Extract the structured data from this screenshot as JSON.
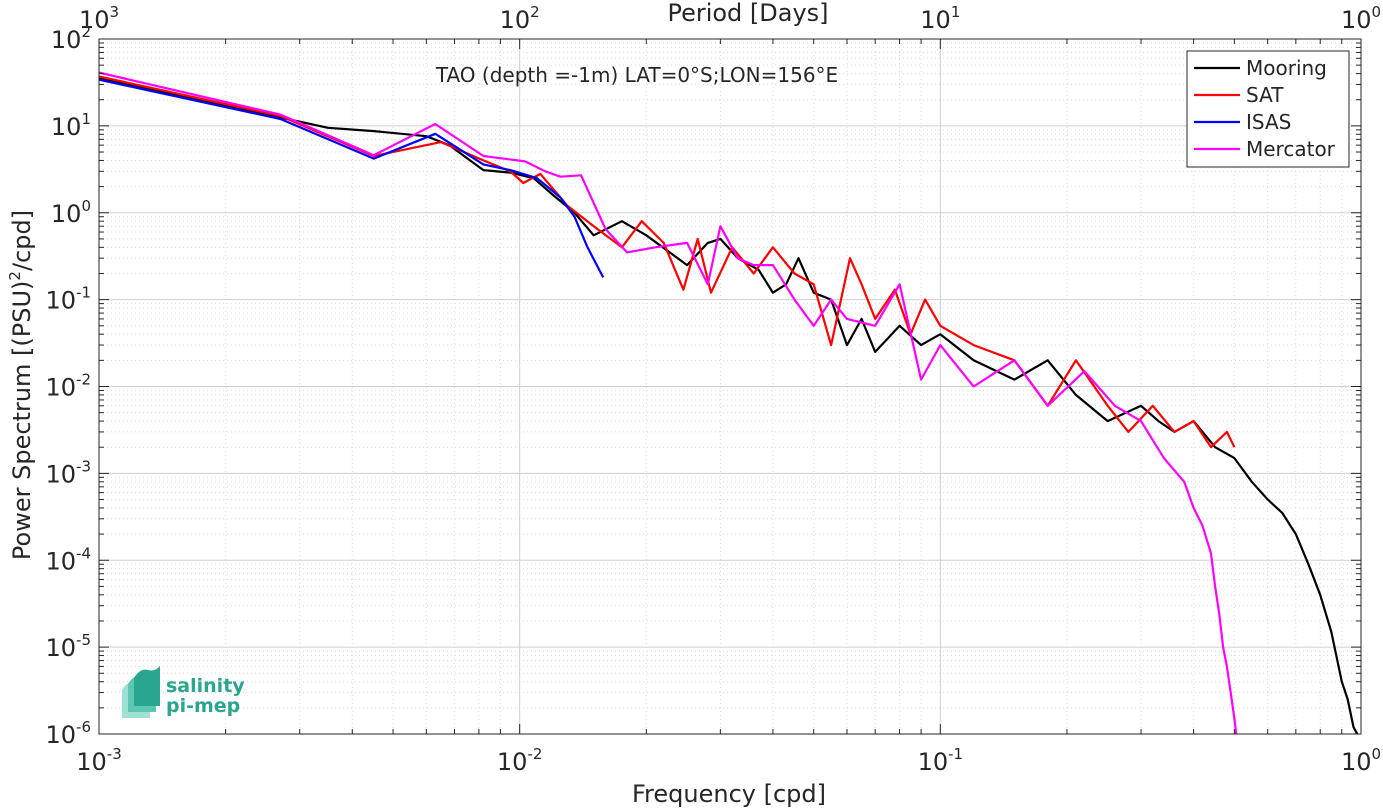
{
  "chart_data": {
    "type": "line",
    "xlabel": "Frequency [cpd]",
    "ylabel": "Power Spectrum [(PSU)^2/cpd]",
    "top_xlabel": "Period [Days]",
    "annotation": "TAO (depth =-1m) LAT=0°S;LON=156°E",
    "x_scale": "log",
    "y_scale": "log",
    "xlim": [
      0.001,
      1
    ],
    "ylim": [
      1e-06,
      100
    ],
    "grid": true,
    "legend_position": "top-right",
    "x_ticks": [
      {
        "value": 0.001,
        "base": "10",
        "exp": "-3"
      },
      {
        "value": 0.01,
        "base": "10",
        "exp": "-2"
      },
      {
        "value": 0.1,
        "base": "10",
        "exp": "-1"
      },
      {
        "value": 1,
        "base": "10",
        "exp": "0"
      }
    ],
    "top_ticks": [
      {
        "value": 0.001,
        "base": "10",
        "exp": "3"
      },
      {
        "value": 0.01,
        "base": "10",
        "exp": "2"
      },
      {
        "value": 0.1,
        "base": "10",
        "exp": "1"
      },
      {
        "value": 1,
        "base": "10",
        "exp": "0"
      }
    ],
    "y_ticks": [
      {
        "value": 100,
        "base": "10",
        "exp": "2"
      },
      {
        "value": 10,
        "base": "10",
        "exp": "1"
      },
      {
        "value": 1,
        "base": "10",
        "exp": "0"
      },
      {
        "value": 0.1,
        "base": "10",
        "exp": "-1"
      },
      {
        "value": 0.01,
        "base": "10",
        "exp": "-2"
      },
      {
        "value": 0.001,
        "base": "10",
        "exp": "-3"
      },
      {
        "value": 0.0001,
        "base": "10",
        "exp": "-4"
      },
      {
        "value": 1e-05,
        "base": "10",
        "exp": "-5"
      },
      {
        "value": 1e-06,
        "base": "10",
        "exp": "-6"
      }
    ],
    "series": [
      {
        "name": "Mooring",
        "color": "#000000",
        "points": [
          [
            0.001,
            35
          ],
          [
            0.0027,
            12.5
          ],
          [
            0.0035,
            9.5
          ],
          [
            0.0045,
            8.7
          ],
          [
            0.006,
            7.6
          ],
          [
            0.0068,
            6
          ],
          [
            0.0082,
            3.1
          ],
          [
            0.0095,
            2.9
          ],
          [
            0.0108,
            2.5
          ],
          [
            0.012,
            1.6
          ],
          [
            0.0135,
            1.0
          ],
          [
            0.015,
            0.55
          ],
          [
            0.0175,
            0.8
          ],
          [
            0.02,
            0.55
          ],
          [
            0.025,
            0.25
          ],
          [
            0.028,
            0.45
          ],
          [
            0.03,
            0.5
          ],
          [
            0.033,
            0.3
          ],
          [
            0.037,
            0.22
          ],
          [
            0.04,
            0.12
          ],
          [
            0.043,
            0.15
          ],
          [
            0.046,
            0.3
          ],
          [
            0.05,
            0.12
          ],
          [
            0.055,
            0.1
          ],
          [
            0.06,
            0.03
          ],
          [
            0.065,
            0.06
          ],
          [
            0.07,
            0.025
          ],
          [
            0.08,
            0.05
          ],
          [
            0.09,
            0.03
          ],
          [
            0.1,
            0.04
          ],
          [
            0.12,
            0.02
          ],
          [
            0.15,
            0.012
          ],
          [
            0.18,
            0.02
          ],
          [
            0.21,
            0.008
          ],
          [
            0.25,
            0.004
          ],
          [
            0.3,
            0.006
          ],
          [
            0.33,
            0.004
          ],
          [
            0.36,
            0.003
          ],
          [
            0.4,
            0.004
          ],
          [
            0.45,
            0.002
          ],
          [
            0.5,
            0.0015
          ],
          [
            0.55,
            0.0008
          ],
          [
            0.6,
            0.0005
          ],
          [
            0.65,
            0.00035
          ],
          [
            0.7,
            0.0002
          ],
          [
            0.75,
            9e-05
          ],
          [
            0.8,
            4e-05
          ],
          [
            0.85,
            1.5e-05
          ],
          [
            0.9,
            4e-06
          ],
          [
            0.93,
            2.5e-06
          ],
          [
            0.96,
            1.2e-06
          ],
          [
            0.98,
            1e-06
          ]
        ]
      },
      {
        "name": "SAT",
        "color": "#ff0000",
        "points": [
          [
            0.001,
            37
          ],
          [
            0.0027,
            13
          ],
          [
            0.0045,
            4.5
          ],
          [
            0.0065,
            6.5
          ],
          [
            0.0082,
            4.0
          ],
          [
            0.0095,
            3.0
          ],
          [
            0.0102,
            2.2
          ],
          [
            0.0112,
            2.8
          ],
          [
            0.013,
            1.2
          ],
          [
            0.015,
            0.7
          ],
          [
            0.0175,
            0.4
          ],
          [
            0.0195,
            0.8
          ],
          [
            0.022,
            0.45
          ],
          [
            0.0245,
            0.13
          ],
          [
            0.0265,
            0.5
          ],
          [
            0.0285,
            0.12
          ],
          [
            0.032,
            0.4
          ],
          [
            0.036,
            0.2
          ],
          [
            0.04,
            0.4
          ],
          [
            0.045,
            0.2
          ],
          [
            0.05,
            0.15
          ],
          [
            0.055,
            0.03
          ],
          [
            0.061,
            0.3
          ],
          [
            0.065,
            0.15
          ],
          [
            0.07,
            0.06
          ],
          [
            0.078,
            0.13
          ],
          [
            0.085,
            0.04
          ],
          [
            0.092,
            0.1
          ],
          [
            0.1,
            0.05
          ],
          [
            0.12,
            0.03
          ],
          [
            0.15,
            0.02
          ],
          [
            0.18,
            0.006
          ],
          [
            0.21,
            0.02
          ],
          [
            0.25,
            0.006
          ],
          [
            0.28,
            0.003
          ],
          [
            0.32,
            0.006
          ],
          [
            0.36,
            0.003
          ],
          [
            0.4,
            0.004
          ],
          [
            0.44,
            0.002
          ],
          [
            0.48,
            0.003
          ],
          [
            0.5,
            0.002
          ]
        ]
      },
      {
        "name": "ISAS",
        "color": "#0000ff",
        "points": [
          [
            0.001,
            34
          ],
          [
            0.0027,
            12
          ],
          [
            0.0045,
            4.2
          ],
          [
            0.0063,
            8.1
          ],
          [
            0.0082,
            3.6
          ],
          [
            0.0095,
            3.1
          ],
          [
            0.011,
            2.5
          ],
          [
            0.0125,
            1.5
          ],
          [
            0.0135,
            0.9
          ],
          [
            0.0145,
            0.4
          ],
          [
            0.0158,
            0.18
          ]
        ]
      },
      {
        "name": "Mercator",
        "color": "#ff00ff",
        "points": [
          [
            0.001,
            41
          ],
          [
            0.0027,
            13.5
          ],
          [
            0.0045,
            4.6
          ],
          [
            0.0063,
            10.5
          ],
          [
            0.0082,
            4.5
          ],
          [
            0.0103,
            3.9
          ],
          [
            0.0115,
            3.0
          ],
          [
            0.0125,
            2.6
          ],
          [
            0.014,
            2.7
          ],
          [
            0.016,
            0.65
          ],
          [
            0.018,
            0.35
          ],
          [
            0.021,
            0.4
          ],
          [
            0.025,
            0.45
          ],
          [
            0.028,
            0.15
          ],
          [
            0.03,
            0.7
          ],
          [
            0.033,
            0.3
          ],
          [
            0.036,
            0.25
          ],
          [
            0.04,
            0.25
          ],
          [
            0.045,
            0.1
          ],
          [
            0.05,
            0.05
          ],
          [
            0.055,
            0.1
          ],
          [
            0.06,
            0.06
          ],
          [
            0.07,
            0.05
          ],
          [
            0.08,
            0.15
          ],
          [
            0.09,
            0.012
          ],
          [
            0.1,
            0.03
          ],
          [
            0.12,
            0.01
          ],
          [
            0.15,
            0.02
          ],
          [
            0.18,
            0.006
          ],
          [
            0.22,
            0.015
          ],
          [
            0.26,
            0.006
          ],
          [
            0.3,
            0.004
          ],
          [
            0.34,
            0.0015
          ],
          [
            0.38,
            0.0008
          ],
          [
            0.4,
            0.0004
          ],
          [
            0.42,
            0.00025
          ],
          [
            0.44,
            0.00012
          ],
          [
            0.45,
            5e-05
          ],
          [
            0.46,
            2.5e-05
          ],
          [
            0.47,
            1e-05
          ],
          [
            0.48,
            6e-06
          ],
          [
            0.49,
            3e-06
          ],
          [
            0.5,
            1.5e-06
          ],
          [
            0.505,
            1e-06
          ]
        ]
      }
    ]
  },
  "logo": {
    "line1": "salinity",
    "line2": "pi-mep"
  }
}
